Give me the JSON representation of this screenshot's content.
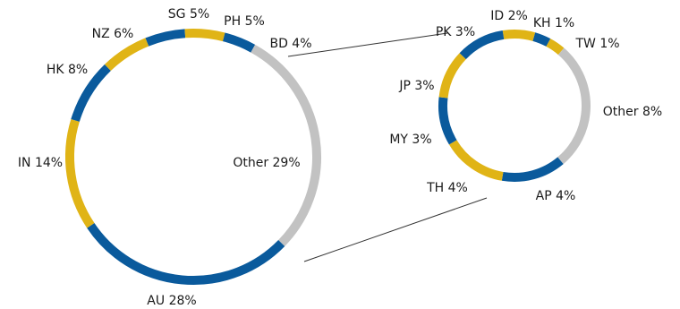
{
  "colors": {
    "blue": "#0a5a9c",
    "gold": "#e0b416",
    "grey": "#c2c2c2"
  },
  "chart_data": [
    {
      "type": "pie",
      "style": "ring",
      "slices": [
        {
          "name": "SG",
          "value": 5,
          "label": "SG 5%",
          "color": "blue"
        },
        {
          "name": "PH",
          "value": 5,
          "label": "PH 5%",
          "color": "gold"
        },
        {
          "name": "BD",
          "value": 4,
          "label": "BD 4%",
          "color": "blue"
        },
        {
          "name": "Other",
          "value": 29,
          "label": "Other 29%",
          "color": "grey"
        },
        {
          "name": "AU",
          "value": 28,
          "label": "AU 28%",
          "color": "blue"
        },
        {
          "name": "IN",
          "value": 14,
          "label": "IN 14%",
          "color": "gold"
        },
        {
          "name": "HK",
          "value": 8,
          "label": "HK 8%",
          "color": "blue"
        },
        {
          "name": "NZ",
          "value": 6,
          "label": "NZ 6%",
          "color": "gold"
        }
      ]
    },
    {
      "type": "pie",
      "style": "ring",
      "breakdown_of": "Other",
      "slices": [
        {
          "name": "ID",
          "value": 2,
          "label": "ID 2%",
          "color": "gold"
        },
        {
          "name": "KH",
          "value": 1,
          "label": "KH 1%",
          "color": "blue"
        },
        {
          "name": "TW",
          "value": 1,
          "label": "TW 1%",
          "color": "gold"
        },
        {
          "name": "Other",
          "value": 8,
          "label": "Other 8%",
          "color": "grey"
        },
        {
          "name": "AP",
          "value": 4,
          "label": "AP 4%",
          "color": "blue"
        },
        {
          "name": "TH",
          "value": 4,
          "label": "TH 4%",
          "color": "gold"
        },
        {
          "name": "MY",
          "value": 3,
          "label": "MY 3%",
          "color": "blue"
        },
        {
          "name": "JP",
          "value": 3,
          "label": "JP 3%",
          "color": "gold"
        },
        {
          "name": "PK",
          "value": 3,
          "label": "PK 3%",
          "color": "blue"
        }
      ]
    }
  ]
}
